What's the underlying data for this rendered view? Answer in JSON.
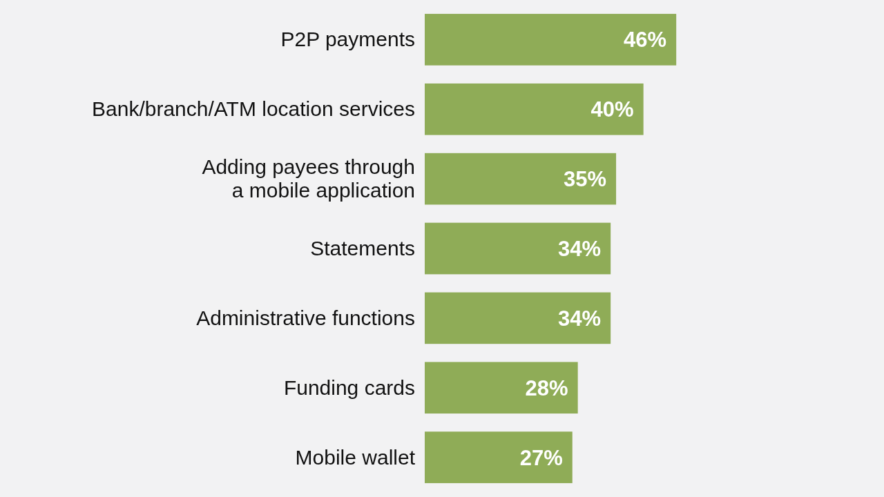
{
  "chart_data": {
    "type": "bar",
    "orientation": "horizontal",
    "categories": [
      "P2P payments",
      "Bank/branch/ATM location services",
      "Adding payees through\na mobile application",
      "Statements",
      "Administrative functions",
      "Funding cards",
      "Mobile wallet"
    ],
    "values": [
      46,
      40,
      35,
      34,
      34,
      28,
      27
    ],
    "value_labels": [
      "46%",
      "40%",
      "35%",
      "34%",
      "34%",
      "28%",
      "27%"
    ],
    "color": "#8fac57",
    "xlim": [
      0,
      84
    ]
  }
}
